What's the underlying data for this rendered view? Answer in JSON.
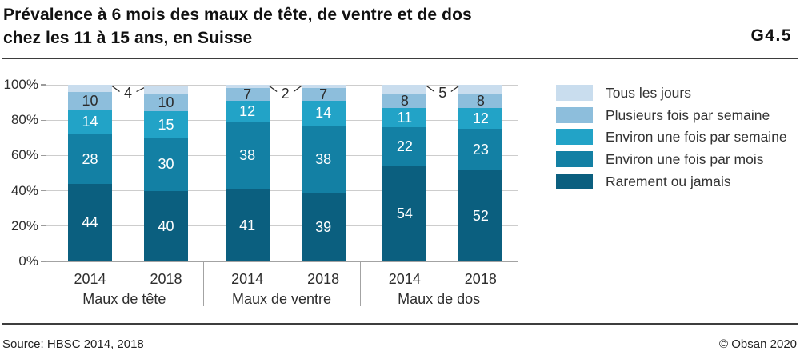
{
  "header": {
    "title_line1": "Prévalence à 6 mois des maux de tête, de ventre et de dos",
    "title_line2": "chez les 11 à 15 ans, en Suisse",
    "figure_id": "G4.5"
  },
  "footer": {
    "source": "Source: HBSC 2014, 2018",
    "copyright": "© Obsan 2020"
  },
  "chart_data": {
    "type": "bar",
    "stacked": true,
    "unit": "%",
    "title": "Prévalence à 6 mois des maux de tête, de ventre et de dos chez les 11 à 15 ans, en Suisse",
    "ylim": [
      0,
      100
    ],
    "ytick_labels": [
      "0%",
      "20%",
      "40%",
      "60%",
      "80%",
      "100%"
    ],
    "grid": true,
    "legend_position": "right",
    "groups": [
      {
        "label": "Maux de tête",
        "years": [
          "2014",
          "2018"
        ]
      },
      {
        "label": "Maux de ventre",
        "years": [
          "2014",
          "2018"
        ]
      },
      {
        "label": "Maux de dos",
        "years": [
          "2014",
          "2018"
        ]
      }
    ],
    "columns": [
      "Maux de tête 2014",
      "Maux de tête 2018",
      "Maux de ventre 2014",
      "Maux de ventre 2018",
      "Maux de dos 2014",
      "Maux de dos 2018"
    ],
    "series": [
      {
        "name": "Rarement ou jamais",
        "color": "#0b5f7f",
        "label_color": "#ffffff",
        "values": [
          44,
          40,
          41,
          39,
          54,
          52
        ]
      },
      {
        "name": "Environ une fois par mois",
        "color": "#1380a4",
        "label_color": "#ffffff",
        "values": [
          28,
          30,
          38,
          38,
          22,
          23
        ]
      },
      {
        "name": "Environ une fois par semaine",
        "color": "#22a3c7",
        "label_color": "#ffffff",
        "values": [
          14,
          15,
          12,
          14,
          11,
          12
        ]
      },
      {
        "name": "Plusieurs fois par semaine",
        "color": "#8dbedc",
        "label_color": "#2b2b2b",
        "values": [
          10,
          10,
          7,
          7,
          8,
          8
        ]
      },
      {
        "name": "Tous les jours",
        "color": "#c9ddee",
        "label_color": "#2b2b2b",
        "values": [
          4,
          4,
          2,
          2,
          5,
          5
        ],
        "labels_as_callout": true
      }
    ],
    "callouts": [
      {
        "value": "4"
      },
      {
        "value": "2"
      },
      {
        "value": "5"
      }
    ]
  }
}
